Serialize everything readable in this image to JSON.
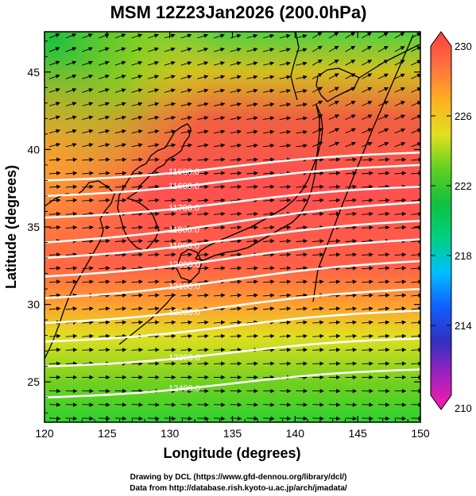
{
  "chart_data": {
    "type": "heatmap",
    "title": "MSM 12Z23Jan2026 (200.0hPa)",
    "xlabel": "Longitude (degrees)",
    "ylabel": "Latitude  (degrees)",
    "xlim": [
      120,
      150
    ],
    "ylim": [
      22.4,
      47.6
    ],
    "x_ticks": [
      "120",
      "125",
      "130",
      "135",
      "140",
      "145",
      "150"
    ],
    "y_ticks": [
      "25",
      "30",
      "35",
      "40",
      "45"
    ],
    "x_tick_values": [
      120,
      125,
      130,
      135,
      140,
      145,
      150
    ],
    "y_tick_values": [
      25,
      30,
      35,
      40,
      45
    ],
    "colorbar": {
      "min": 210,
      "max": 230,
      "labels": [
        "230",
        "226",
        "222",
        "218",
        "214",
        "210"
      ],
      "label_values": [
        230,
        226,
        222,
        218,
        214,
        210
      ],
      "colors": [
        "#ff1ca8",
        "#a020c0",
        "#3030c0",
        "#1060ff",
        "#00c0ff",
        "#00d080",
        "#10c040",
        "#60d020",
        "#e0e020",
        "#ffb020",
        "#ff7040",
        "#ff4040"
      ]
    },
    "contours": [
      {
        "label": "11600.0",
        "lat_left": 38.0,
        "lat_right": 39.8
      },
      {
        "label": "11600.0",
        "lat_left": 37.0,
        "lat_right": 39.0
      },
      {
        "label": "11700.0",
        "lat_left": 35.6,
        "lat_right": 37.6
      },
      {
        "label": "11800.0",
        "lat_left": 34.0,
        "lat_right": 36.6
      },
      {
        "label": "11900.0",
        "lat_left": 33.0,
        "lat_right": 35.4
      },
      {
        "label": "12000.0",
        "lat_left": 31.8,
        "lat_right": 34.2
      },
      {
        "label": "12100.0",
        "lat_left": 30.4,
        "lat_right": 32.8
      },
      {
        "label": "12200.0",
        "lat_left": 28.8,
        "lat_right": 31.0
      },
      {
        "label": "",
        "lat_left": 27.6,
        "lat_right": 29.6
      },
      {
        "label": "12300.0",
        "lat_left": 26.0,
        "lat_right": 27.8
      },
      {
        "label": "12400.0",
        "lat_left": 24.0,
        "lat_right": 25.8
      }
    ]
  },
  "credits": {
    "line1": "Drawing by DCL (https://www.gfd-dennou.org/library/dcl/)",
    "line2": "Data from http://database.rish.kyoto-u.ac.jp/arch/jmadata/"
  }
}
